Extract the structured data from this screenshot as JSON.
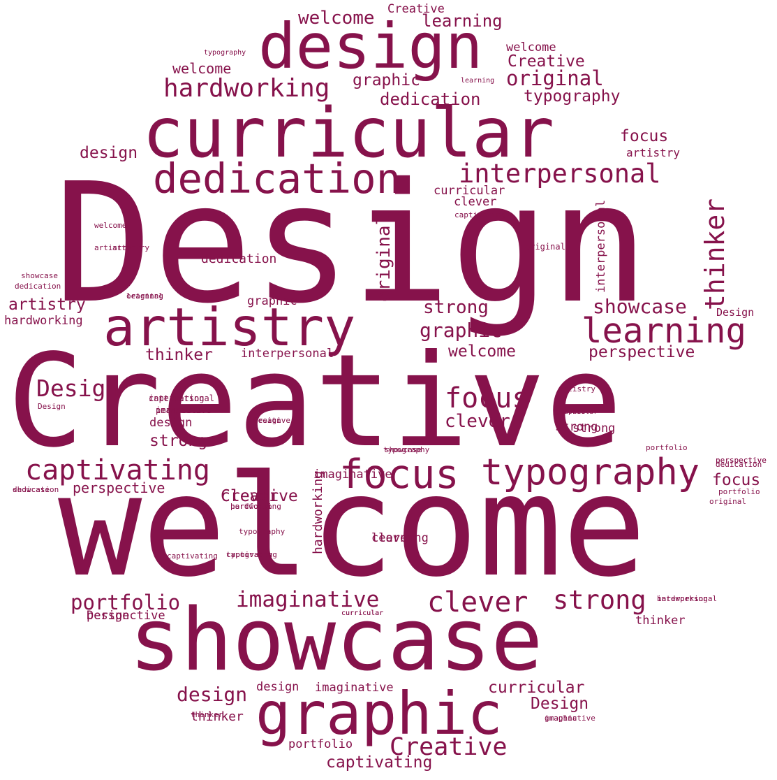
{
  "color": "#86124b",
  "words": [
    "Design",
    "Creative",
    "welcome",
    "showcase",
    "curricular",
    "design",
    "graphic",
    "artistry",
    "dedication",
    "interpersonal",
    "typography",
    "learning",
    "focus",
    "captivating",
    "hardworking",
    "imaginative",
    "clever",
    "strong",
    "portfolio",
    "Design",
    "original",
    "thinker",
    "focus",
    "welcome",
    "learning",
    "Creative",
    "showcase",
    "original",
    "graphic",
    "dedication",
    "typography",
    "focus",
    "artistry",
    "design",
    "curricular",
    "clever",
    "captivating",
    "interpersonal",
    "original",
    "welcome",
    "thinker",
    "graphic",
    "strong",
    "dedication",
    "artistry",
    "hardworking",
    "thinker",
    "interpersonal",
    "Design",
    "perspective",
    "welcome",
    "perspective",
    "design",
    "strong",
    "clever",
    "hardworking",
    "learning",
    "portfolio",
    "Design",
    "design",
    "imaginative",
    "design",
    "curricular",
    "Design",
    "Creative",
    "captivating",
    "portfolio",
    "thinker",
    "graphic",
    "focus",
    "strong",
    "curricular",
    "Creative",
    "interpersonal",
    "imaginative",
    "Design",
    "imaginative",
    "curricular",
    "artistry",
    "strong",
    "portfolio",
    "perspective",
    "portfolio",
    "original",
    "hardworking",
    "thinker",
    "curricular",
    "perspective",
    "typography",
    "captivating",
    "showcase",
    "dedication",
    "showcase",
    "dedication",
    "typography",
    "welcome",
    "artistry",
    "graphic",
    "Creative",
    "learning",
    "captivating",
    "clever",
    "welcome",
    "artistry",
    "original",
    "typography",
    "showcase",
    "dedication",
    "perspective",
    "Design",
    "Creative",
    "clever",
    "learning",
    "typography",
    "captivating",
    "interpersonal",
    "hardworking",
    "perspective",
    "imaginative",
    "graphic",
    "curricular"
  ]
}
